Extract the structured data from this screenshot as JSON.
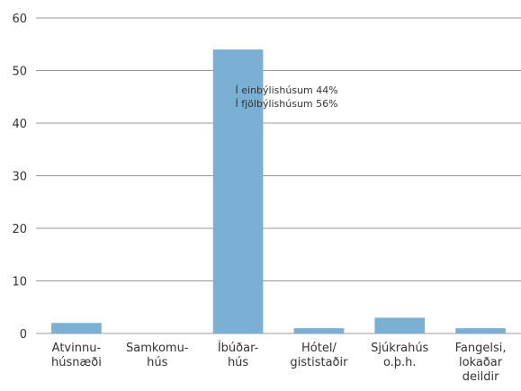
{
  "chart_data": {
    "type": "bar",
    "categories": [
      [
        "Atvinnu-",
        "húsnæði"
      ],
      [
        "Samkomu-",
        "hús"
      ],
      [
        "Íbúðar-",
        "hús"
      ],
      [
        "Hótel/",
        "gististaðir"
      ],
      [
        "Sjúkrahús",
        "o.þ.h."
      ],
      [
        "Fangelsi,",
        "lokaðar",
        "deildir"
      ]
    ],
    "values": [
      2,
      0,
      54,
      1,
      3,
      1
    ],
    "color": "#7bafd4",
    "ylim": [
      0,
      60
    ],
    "yticks": [
      0,
      10,
      20,
      30,
      40,
      50,
      60
    ],
    "grid": true,
    "annotations": [
      "Í einbýlishúsum 44%",
      "Í fjölbýlishúsum 56%"
    ]
  }
}
